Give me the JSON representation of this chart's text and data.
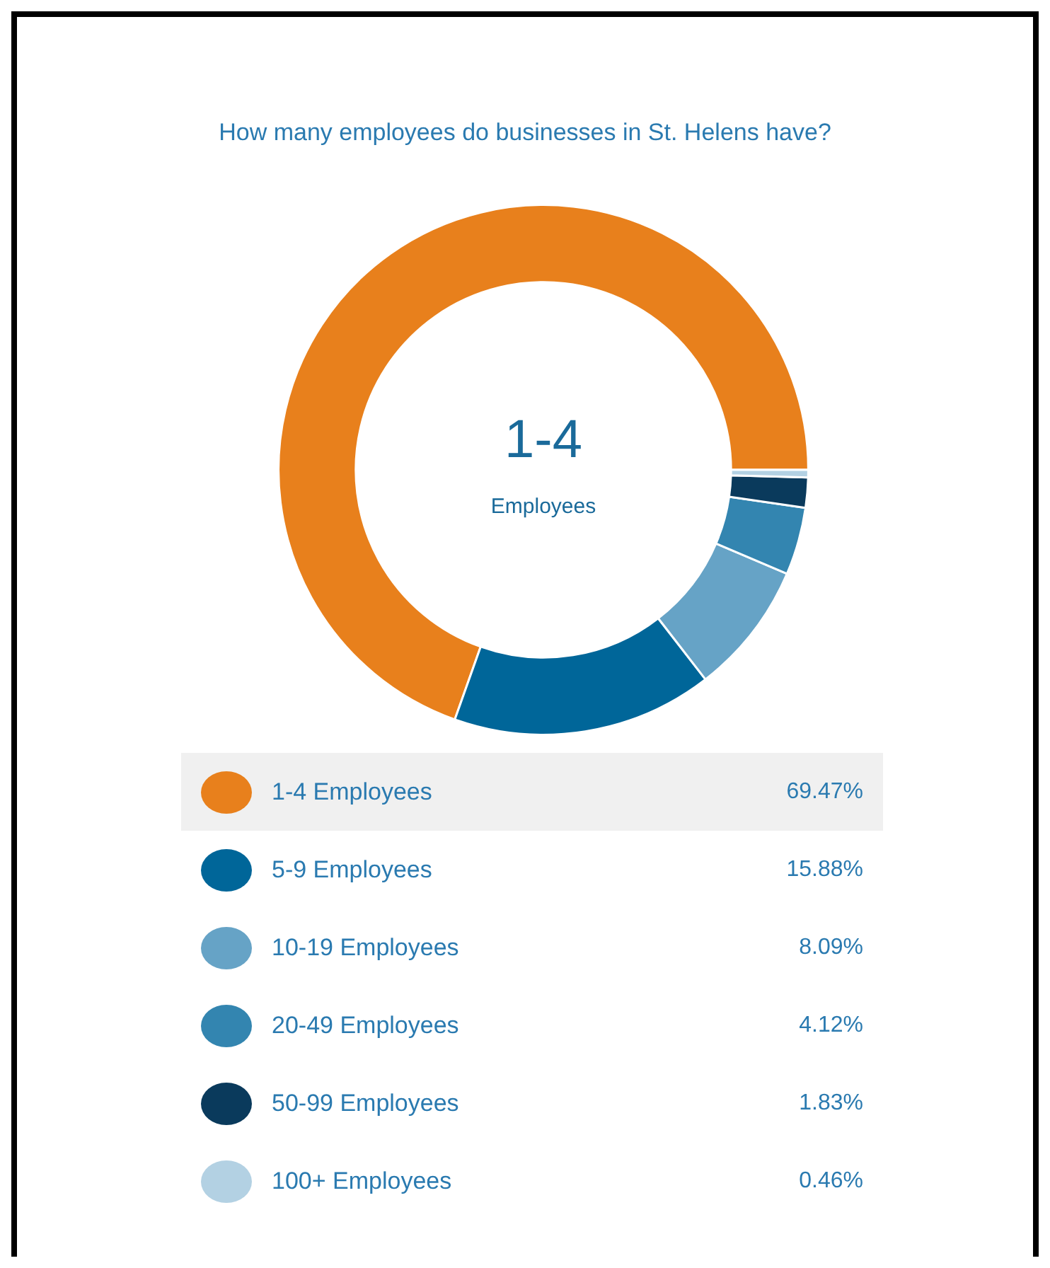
{
  "chart_data": {
    "type": "donut",
    "title": "How many employees do businesses in St. Helens have?",
    "categories": [
      "1-4 Employees",
      "5-9 Employees",
      "10-19 Employees",
      "20-49 Employees",
      "50-99 Employees",
      "100+ Employees"
    ],
    "values": [
      69.47,
      15.88,
      8.09,
      4.12,
      1.83,
      0.46
    ],
    "colors": [
      "#e8801c",
      "#006699",
      "#66a3c6",
      "#3385b0",
      "#0a3a5c",
      "#b3d1e3"
    ],
    "value_labels": [
      "69.47%",
      "15.88%",
      "8.09%",
      "4.12%",
      "1.83%",
      "0.46%"
    ],
    "annotations": [
      "1-4",
      "Employees"
    ],
    "legend": "bottom"
  }
}
